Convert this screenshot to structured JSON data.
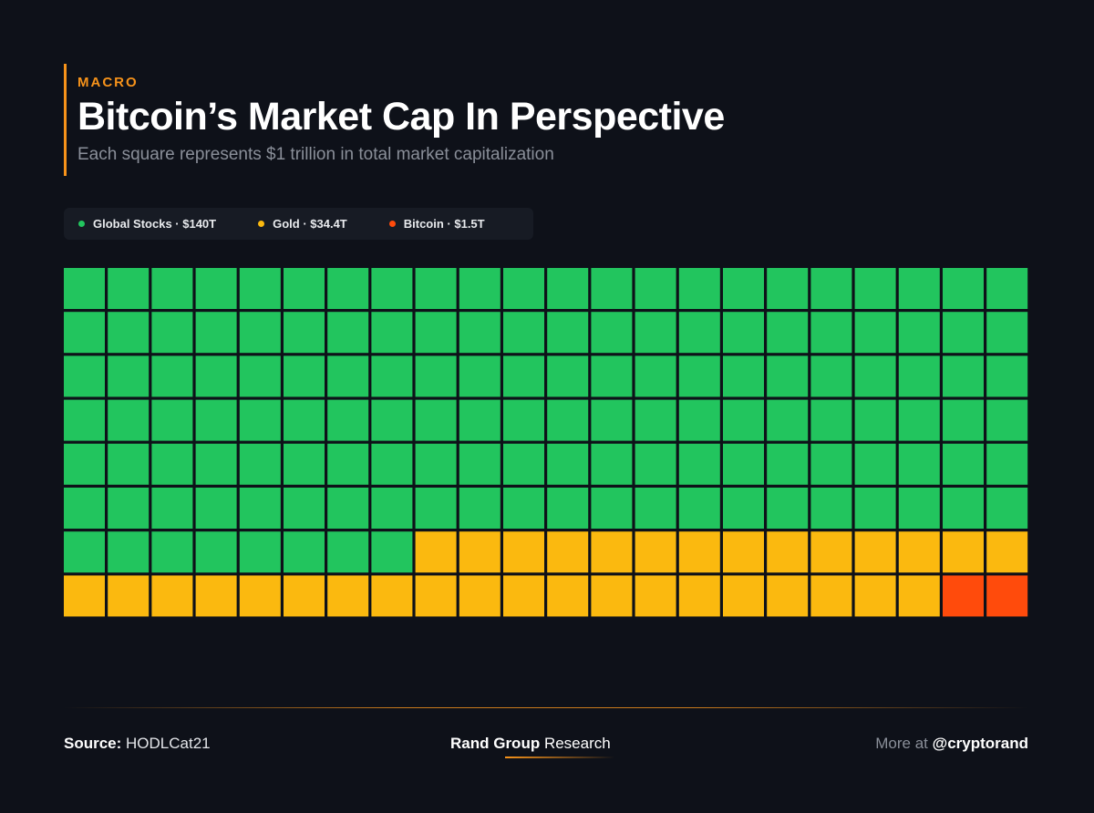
{
  "header": {
    "kicker": "MACRO",
    "title": "Bitcoin’s Market Cap In Perspective",
    "subtitle": "Each square represents $1 trillion in total market capitalization"
  },
  "colors": {
    "background": "#0e1119",
    "accent": "#f7931a",
    "stocks": "#22c55e",
    "gold": "#fbb90f",
    "bitcoin": "#ff4b0c"
  },
  "chart_data": {
    "type": "waffle",
    "unit": "$1 trillion per square",
    "grid": {
      "columns": 22,
      "rows": 8
    },
    "series": [
      {
        "name": "Global Stocks",
        "label": "Global Stocks · $140T",
        "value": 140,
        "squares": 140,
        "color": "#22c55e"
      },
      {
        "name": "Gold",
        "label": "Gold · $34.4T",
        "value": 34.4,
        "squares": 34,
        "color": "#fbb90f"
      },
      {
        "name": "Bitcoin",
        "label": "Bitcoin · $1.5T",
        "value": 1.5,
        "squares": 2,
        "color": "#ff4b0c"
      }
    ]
  },
  "footer": {
    "source_label": "Source:",
    "source_value": "HODLCat21",
    "brand_bold": "Rand Group",
    "brand_light": "Research",
    "more_label": "More at",
    "handle": "@cryptorand"
  }
}
